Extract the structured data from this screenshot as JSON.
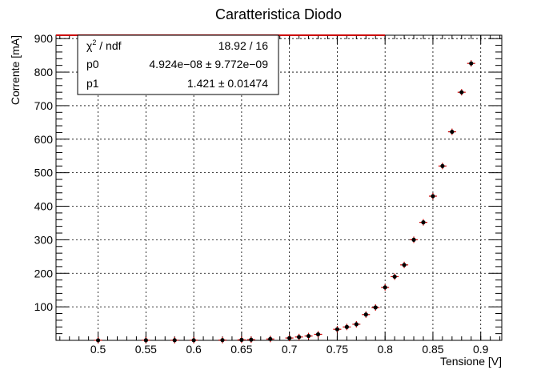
{
  "chart_data": {
    "type": "scatter",
    "title": "Caratteristica Diodo",
    "xlabel": "Tensione [V]",
    "ylabel": "Corrente [mA]",
    "xlim": [
      0.456,
      0.922
    ],
    "ylim": [
      0,
      910
    ],
    "grid": true,
    "x_ticks": [
      0.5,
      0.55,
      0.6,
      0.65,
      0.7,
      0.75,
      0.8,
      0.85,
      0.9
    ],
    "x_tick_labels": [
      "0.5",
      "0.55",
      "0.6",
      "0.65",
      "0.7",
      "0.75",
      "0.8",
      "0.85",
      "0.9"
    ],
    "y_ticks": [
      100,
      200,
      300,
      400,
      500,
      600,
      700,
      800,
      900
    ],
    "y_tick_labels": [
      "100",
      "200",
      "300",
      "400",
      "500",
      "600",
      "700",
      "800",
      "900"
    ],
    "series": [
      {
        "marker_color": "#000000",
        "error_color": "#cc0000",
        "x": [
          0.5,
          0.55,
          0.58,
          0.6,
          0.63,
          0.65,
          0.66,
          0.68,
          0.7,
          0.71,
          0.72,
          0.73,
          0.75,
          0.76,
          0.77,
          0.78,
          0.79,
          0.8,
          0.81,
          0.82,
          0.83,
          0.84,
          0.85,
          0.86,
          0.87,
          0.88,
          0.89
        ],
        "y": [
          0.2,
          0.3,
          0.4,
          0.5,
          0.8,
          1.5,
          2,
          4,
          7,
          10,
          13,
          18,
          33,
          40,
          48,
          77,
          98,
          158,
          190,
          225,
          300,
          352,
          430,
          520,
          622,
          740,
          826
        ]
      }
    ],
    "fit": {
      "color": "#cc0000",
      "function": "p0*exp(p1*x/0.025852)",
      "p0": 4.924e-08,
      "p1": 1.421,
      "x_range": [
        0.456,
        0.8
      ]
    },
    "stats_box": {
      "rows": [
        {
          "label_main": "χ",
          "label_sup": "2",
          "label_rest": " / ndf",
          "value": "18.92 / 16"
        },
        {
          "label_main": "p0",
          "label_sup": "",
          "label_rest": "",
          "value": "4.924e−08 ± 9.772e−09"
        },
        {
          "label_main": "p1",
          "label_sup": "",
          "label_rest": "",
          "value": "1.421 ± 0.01474"
        }
      ]
    }
  }
}
